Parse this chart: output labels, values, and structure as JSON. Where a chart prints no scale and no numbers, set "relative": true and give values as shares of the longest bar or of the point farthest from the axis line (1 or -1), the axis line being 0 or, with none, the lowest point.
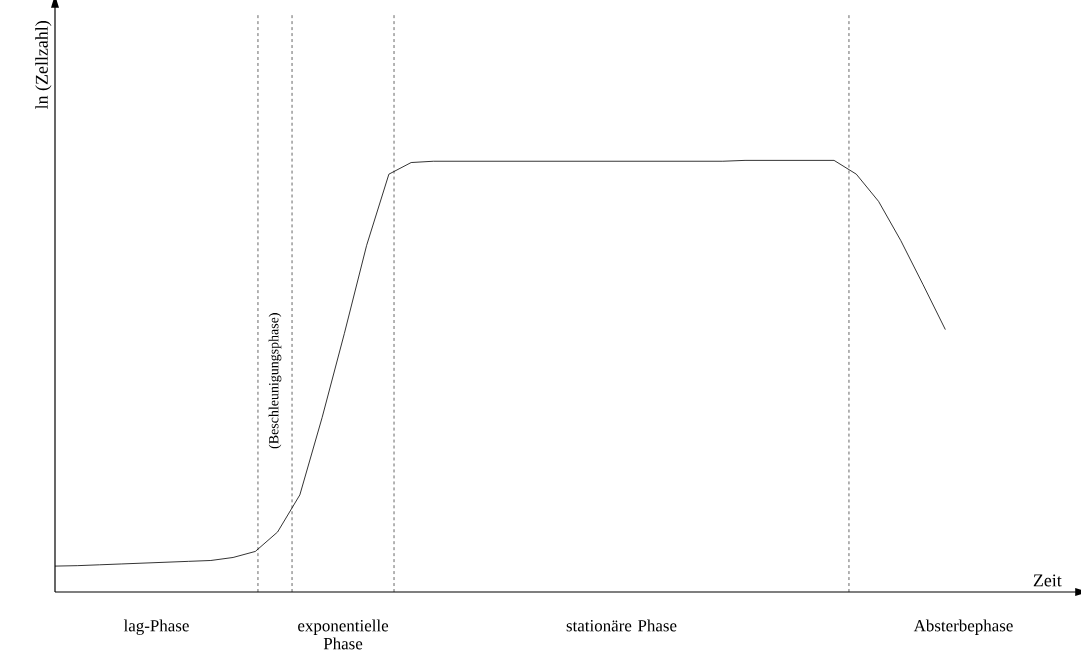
{
  "chart_data": {
    "type": "line",
    "relative": true,
    "xlabel": "Zeit",
    "ylabel": "ln (Zellzahl)",
    "marker": "none",
    "line_style": "solid",
    "categories": [
      null,
      null,
      null,
      null,
      null,
      null,
      null,
      null,
      null,
      null,
      null,
      null,
      null,
      null,
      null,
      null,
      null,
      null,
      null,
      null,
      null,
      null,
      null,
      null,
      null,
      null,
      null,
      null,
      null,
      null,
      null,
      null,
      null,
      null,
      null,
      null,
      null,
      null,
      null,
      null,
      null
    ],
    "series": [
      {
        "color": "#000000",
        "values": [
          0.06,
          0.061,
          0.063,
          0.065,
          0.067,
          0.069,
          0.071,
          0.073,
          0.08,
          0.094,
          0.139,
          0.225,
          0.404,
          0.599,
          0.803,
          0.968,
          0.995,
          0.998,
          0.998,
          0.998,
          0.998,
          0.998,
          0.998,
          0.998,
          0.998,
          0.998,
          0.998,
          0.998,
          0.998,
          0.998,
          0.998,
          1.0,
          1.0,
          1.0,
          1.0,
          1.0,
          0.968,
          0.905,
          0.814,
          0.712,
          0.608
        ]
      }
    ],
    "annotations": [
      "lag-Phase",
      "(Beschleunigungsphase)",
      "exponentielle Phase",
      "stationäre Phase",
      "Absterbephase"
    ]
  }
}
